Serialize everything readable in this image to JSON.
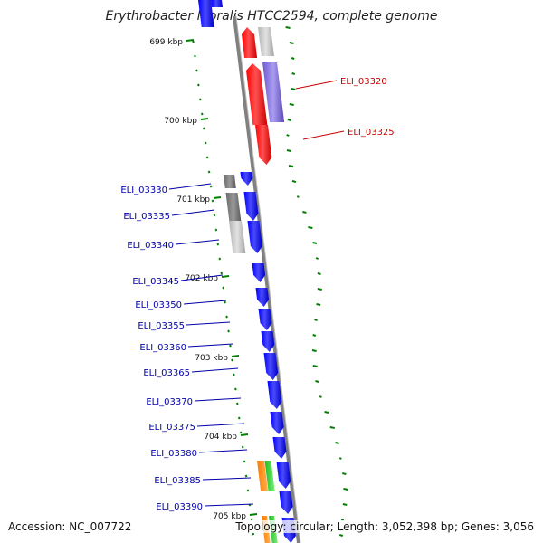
{
  "title": "Erythrobacter litoralis HTCC2594, complete genome",
  "footer": {
    "accession": "Accession: NC_007722",
    "summary": "Topology: circular; Length: 3,052,398 bp; Genes: 3,056"
  },
  "colors": {
    "forward_gene": "#0000ff",
    "forward_gene_label": "#0000aa",
    "reverse_gene": "#ff0000",
    "reverse_gene_label": "#cc0000",
    "cog_purple": "#7b68d9",
    "cog_grey": "#888888",
    "cog_light_grey": "#c8c8c8",
    "cog_orange": "#ff8c00",
    "cog_green": "#33cc33",
    "gc_skew": "#008000",
    "backbone": "#808080"
  },
  "ticks": [
    {
      "label": "699 kbp"
    },
    {
      "label": "700 kbp"
    },
    {
      "label": "701 kbp"
    },
    {
      "label": "702 kbp"
    },
    {
      "label": "703 kbp"
    },
    {
      "label": "704 kbp"
    },
    {
      "label": "705 kbp"
    }
  ],
  "reverse_labels": [
    {
      "label": "ELI_03320"
    },
    {
      "label": "ELI_03325"
    }
  ],
  "forward_labels": [
    {
      "label": "ELI_03330"
    },
    {
      "label": "ELI_03335"
    },
    {
      "label": "ELI_03340"
    },
    {
      "label": "ELI_03345"
    },
    {
      "label": "ELI_03350"
    },
    {
      "label": "ELI_03355"
    },
    {
      "label": "ELI_03360"
    },
    {
      "label": "ELI_03365"
    },
    {
      "label": "ELI_03370"
    },
    {
      "label": "ELI_03375"
    },
    {
      "label": "ELI_03380"
    },
    {
      "label": "ELI_03385"
    },
    {
      "label": "ELI_03390"
    }
  ]
}
